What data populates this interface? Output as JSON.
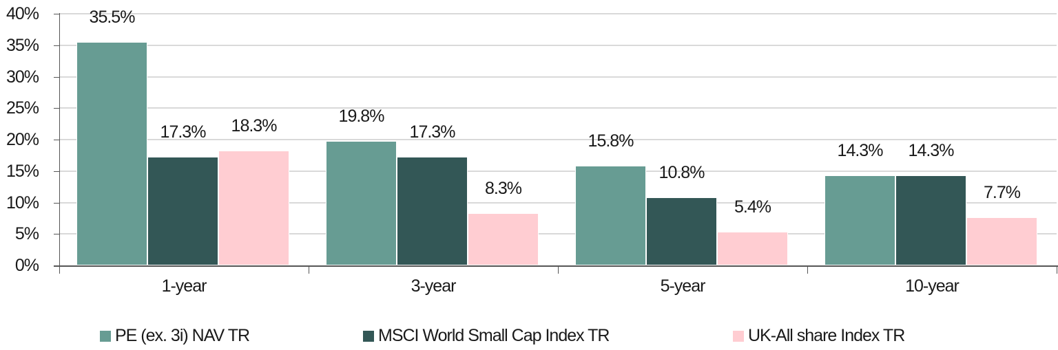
{
  "chart_data": {
    "type": "bar",
    "title": "",
    "xlabel": "",
    "ylabel": "",
    "categories": [
      "1-year",
      "3-year",
      "5-year",
      "10-year"
    ],
    "series": [
      {
        "name": "PE (ex. 3i) NAV TR",
        "color": "#679c93",
        "values": [
          35.5,
          19.8,
          15.8,
          14.3
        ],
        "labels": [
          "35.5%",
          "19.8%",
          "15.8%",
          "14.3%"
        ]
      },
      {
        "name": "MSCI World Small Cap Index TR",
        "color": "#335756",
        "values": [
          17.3,
          17.3,
          10.8,
          14.3
        ],
        "labels": [
          "17.3%",
          "17.3%",
          "10.8%",
          "14.3%"
        ]
      },
      {
        "name": "UK-All share Index TR",
        "color": "#ffcdd2",
        "values": [
          18.3,
          8.3,
          5.4,
          7.7
        ],
        "labels": [
          "18.3%",
          "8.3%",
          "5.4%",
          "7.7%"
        ]
      }
    ],
    "ylim": [
      0,
      40
    ],
    "yticks": [
      "0%",
      "5%",
      "10%",
      "15%",
      "20%",
      "25%",
      "30%",
      "35%",
      "40%"
    ],
    "grid": true,
    "legend_position": "bottom"
  }
}
